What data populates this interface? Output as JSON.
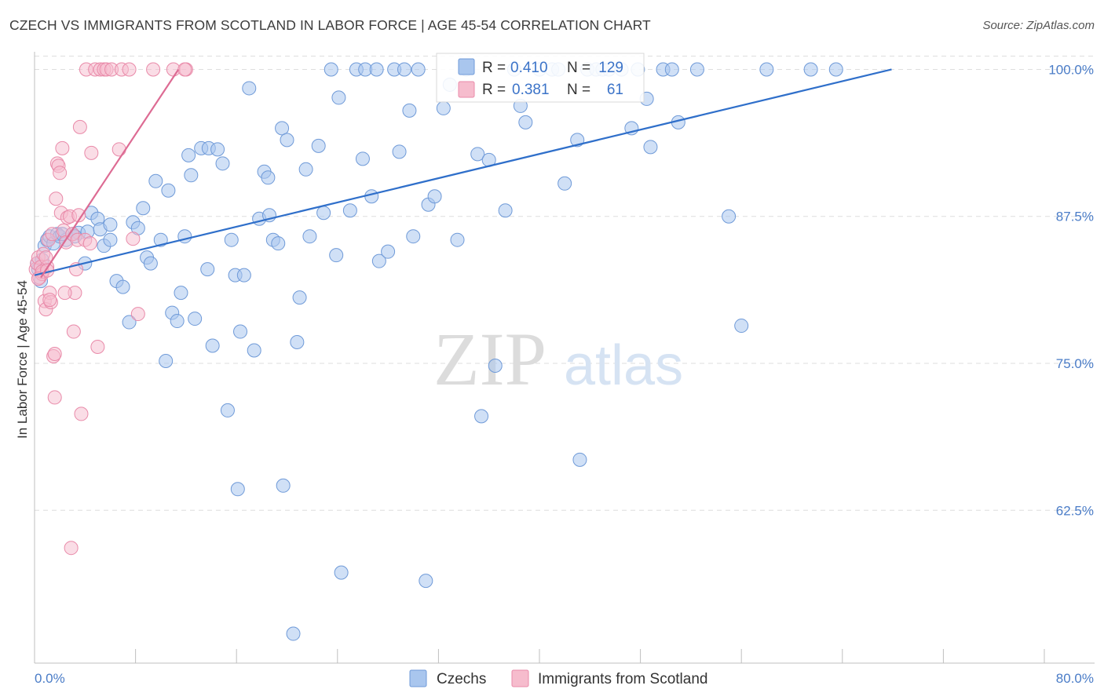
{
  "header": {
    "title": "CZECH VS IMMIGRANTS FROM SCOTLAND IN LABOR FORCE | AGE 45-54 CORRELATION CHART",
    "source": "Source: ZipAtlas.com"
  },
  "watermark": {
    "zip": "ZIP",
    "atlas": "atlas"
  },
  "colors": {
    "blue_fill": "#a9c6ee",
    "blue_stroke": "#6f9ad8",
    "blue_line": "#2f6fca",
    "pink_fill": "#f6bccd",
    "pink_stroke": "#e98aa9",
    "pink_line": "#dd6b93",
    "grid": "#dedede",
    "tick_label": "#4a7cc7"
  },
  "legend_box": {
    "row1": {
      "r_label": "R =",
      "r_value": "0.410",
      "n_label": "N =",
      "n_value": "129"
    },
    "row2": {
      "r_label": "R =",
      "r_value": "0.381",
      "n_label": "N =",
      "n_value": "61"
    }
  },
  "chart_data": {
    "type": "scatter",
    "title": "CZECH VS IMMIGRANTS FROM SCOTLAND IN LABOR FORCE | AGE 45-54 CORRELATION CHART",
    "xlabel": "",
    "ylabel": "In Labor Force | Age 45-54",
    "xlim": [
      0,
      80
    ],
    "ylim": [
      49.5,
      101.5
    ],
    "x_tick_labels": [
      "0.0%",
      "80.0%"
    ],
    "y_ticks": [
      62.5,
      75.0,
      87.5,
      100.0
    ],
    "y_tick_labels": [
      "62.5%",
      "75.0%",
      "87.5%",
      "100.0%"
    ],
    "grid": true,
    "legend_position": "bottom-center",
    "series": [
      {
        "name": "Czechs",
        "color": "#a9c6ee",
        "r": 0.41,
        "n": 129,
        "trend": {
          "x": [
            0,
            67.9
          ],
          "y": [
            82.5,
            100.0
          ]
        },
        "points": [
          [
            0.2,
            83.5
          ],
          [
            0.3,
            83.0
          ],
          [
            0.5,
            82.0
          ],
          [
            0.6,
            83.8
          ],
          [
            0.8,
            85.0
          ],
          [
            1.0,
            85.5
          ],
          [
            1.2,
            85.8
          ],
          [
            1.5,
            85.2
          ],
          [
            1.8,
            86.0
          ],
          [
            2.0,
            85.8
          ],
          [
            2.5,
            85.5
          ],
          [
            3.0,
            86.0
          ],
          [
            3.5,
            86.1
          ],
          [
            4.0,
            83.5
          ],
          [
            4.2,
            86.2
          ],
          [
            4.5,
            87.8
          ],
          [
            5.0,
            87.3
          ],
          [
            5.5,
            85.0
          ],
          [
            6.0,
            85.5
          ],
          [
            6.5,
            82.0
          ],
          [
            7.0,
            81.5
          ],
          [
            7.5,
            78.5
          ],
          [
            7.8,
            87.0
          ],
          [
            8.2,
            86.5
          ],
          [
            8.6,
            88.2
          ],
          [
            8.9,
            84.0
          ],
          [
            9.2,
            83.5
          ],
          [
            9.6,
            90.5
          ],
          [
            10.0,
            85.5
          ],
          [
            10.4,
            75.2
          ],
          [
            10.6,
            89.7
          ],
          [
            10.9,
            79.3
          ],
          [
            11.3,
            78.6
          ],
          [
            11.6,
            81.0
          ],
          [
            11.9,
            85.8
          ],
          [
            12.2,
            92.7
          ],
          [
            12.4,
            91.0
          ],
          [
            12.7,
            78.8
          ],
          [
            13.2,
            93.3
          ],
          [
            13.8,
            93.3
          ],
          [
            13.7,
            83.0
          ],
          [
            14.1,
            76.5
          ],
          [
            14.5,
            93.2
          ],
          [
            14.9,
            92.0
          ],
          [
            15.3,
            71.0
          ],
          [
            15.6,
            85.5
          ],
          [
            15.9,
            82.5
          ],
          [
            16.3,
            77.7
          ],
          [
            16.1,
            64.3
          ],
          [
            16.6,
            82.5
          ],
          [
            17.0,
            98.4
          ],
          [
            17.4,
            76.1
          ],
          [
            17.8,
            87.3
          ],
          [
            18.2,
            91.3
          ],
          [
            18.5,
            90.8
          ],
          [
            18.6,
            87.6
          ],
          [
            18.9,
            85.5
          ],
          [
            19.3,
            85.2
          ],
          [
            19.6,
            95.0
          ],
          [
            19.7,
            64.6
          ],
          [
            20.0,
            94.0
          ],
          [
            20.5,
            52.0
          ],
          [
            20.8,
            76.8
          ],
          [
            21.0,
            80.6
          ],
          [
            21.5,
            91.5
          ],
          [
            21.8,
            85.8
          ],
          [
            22.5,
            93.5
          ],
          [
            22.9,
            87.8
          ],
          [
            23.5,
            100.0
          ],
          [
            23.9,
            84.2
          ],
          [
            24.1,
            97.6
          ],
          [
            24.3,
            57.2
          ],
          [
            25.0,
            88.0
          ],
          [
            25.5,
            100.0
          ],
          [
            26.0,
            92.4
          ],
          [
            26.2,
            100.0
          ],
          [
            26.7,
            89.2
          ],
          [
            27.1,
            100.0
          ],
          [
            27.3,
            83.7
          ],
          [
            28.0,
            84.5
          ],
          [
            28.5,
            100.0
          ],
          [
            28.9,
            93.0
          ],
          [
            29.3,
            100.0
          ],
          [
            29.7,
            96.5
          ],
          [
            30.0,
            85.8
          ],
          [
            30.4,
            100.0
          ],
          [
            31.0,
            56.5
          ],
          [
            31.2,
            88.5
          ],
          [
            31.7,
            89.2
          ],
          [
            32.4,
            96.7
          ],
          [
            32.9,
            98.7
          ],
          [
            33.5,
            85.5
          ],
          [
            34.2,
            100.0
          ],
          [
            35.1,
            92.8
          ],
          [
            35.4,
            70.5
          ],
          [
            36.0,
            92.3
          ],
          [
            36.5,
            74.8
          ],
          [
            37.3,
            88.0
          ],
          [
            38.0,
            100.0
          ],
          [
            38.5,
            96.9
          ],
          [
            38.9,
            95.5
          ],
          [
            40.0,
            100.0
          ],
          [
            41.0,
            100.0
          ],
          [
            41.5,
            100.0
          ],
          [
            42.0,
            90.3
          ],
          [
            43.0,
            94.0
          ],
          [
            43.2,
            66.8
          ],
          [
            43.8,
            100.0
          ],
          [
            44.5,
            100.0
          ],
          [
            45.0,
            100.0
          ],
          [
            45.5,
            100.0
          ],
          [
            46.5,
            100.0
          ],
          [
            47.3,
            95.0
          ],
          [
            47.8,
            100.0
          ],
          [
            48.5,
            97.5
          ],
          [
            48.8,
            93.4
          ],
          [
            49.8,
            100.0
          ],
          [
            50.5,
            100.0
          ],
          [
            51.0,
            95.5
          ],
          [
            52.5,
            100.0
          ],
          [
            55.0,
            87.5
          ],
          [
            56.0,
            78.2
          ],
          [
            58.0,
            100.0
          ],
          [
            61.5,
            100.0
          ],
          [
            63.5,
            100.0
          ],
          [
            2.2,
            86.0
          ],
          [
            3.2,
            85.8
          ],
          [
            5.2,
            86.4
          ],
          [
            6.0,
            86.8
          ]
        ]
      },
      {
        "name": "Immigrants from Scotland",
        "color": "#f6bccd",
        "r": 0.381,
        "n": 61,
        "trend": {
          "x": [
            0.5,
            11.4
          ],
          "y": [
            82.3,
            100.0
          ]
        },
        "points": [
          [
            0.1,
            83.0
          ],
          [
            0.2,
            83.5
          ],
          [
            0.3,
            84.0
          ],
          [
            0.4,
            82.3
          ],
          [
            0.5,
            83.2
          ],
          [
            0.6,
            82.6
          ],
          [
            0.7,
            84.3
          ],
          [
            0.8,
            80.3
          ],
          [
            0.9,
            79.6
          ],
          [
            1.0,
            83.2
          ],
          [
            1.1,
            85.5
          ],
          [
            1.2,
            81.0
          ],
          [
            1.3,
            80.2
          ],
          [
            1.4,
            86.0
          ],
          [
            1.5,
            75.6
          ],
          [
            1.6,
            72.1
          ],
          [
            1.7,
            89.0
          ],
          [
            1.8,
            92.0
          ],
          [
            1.9,
            91.8
          ],
          [
            2.0,
            91.2
          ],
          [
            2.1,
            87.8
          ],
          [
            2.2,
            93.3
          ],
          [
            2.3,
            86.3
          ],
          [
            2.5,
            85.3
          ],
          [
            2.6,
            87.4
          ],
          [
            2.8,
            87.5
          ],
          [
            3.0,
            86.0
          ],
          [
            3.1,
            77.7
          ],
          [
            3.2,
            81.0
          ],
          [
            3.4,
            85.5
          ],
          [
            3.5,
            87.6
          ],
          [
            3.6,
            95.1
          ],
          [
            3.7,
            70.7
          ],
          [
            4.0,
            85.5
          ],
          [
            4.1,
            100.0
          ],
          [
            4.5,
            92.9
          ],
          [
            4.8,
            100.0
          ],
          [
            5.0,
            76.4
          ],
          [
            5.2,
            100.0
          ],
          [
            5.5,
            100.0
          ],
          [
            5.7,
            100.0
          ],
          [
            6.1,
            100.0
          ],
          [
            6.7,
            93.2
          ],
          [
            6.9,
            100.0
          ],
          [
            7.5,
            100.0
          ],
          [
            7.8,
            85.6
          ],
          [
            8.2,
            79.2
          ],
          [
            9.4,
            100.0
          ],
          [
            11.0,
            100.0
          ],
          [
            12.0,
            100.0
          ],
          [
            0.6,
            82.8
          ],
          [
            0.9,
            84.0
          ],
          [
            1.2,
            80.4
          ],
          [
            1.6,
            75.8
          ],
          [
            2.4,
            81.0
          ],
          [
            2.9,
            59.3
          ],
          [
            3.3,
            83.0
          ],
          [
            4.4,
            85.2
          ],
          [
            1.0,
            82.9
          ],
          [
            0.3,
            82.2
          ],
          [
            11.9,
            100.0
          ]
        ]
      }
    ]
  },
  "legend": {
    "items": [
      {
        "label": "Czechs"
      },
      {
        "label": "Immigrants from Scotland"
      }
    ]
  }
}
